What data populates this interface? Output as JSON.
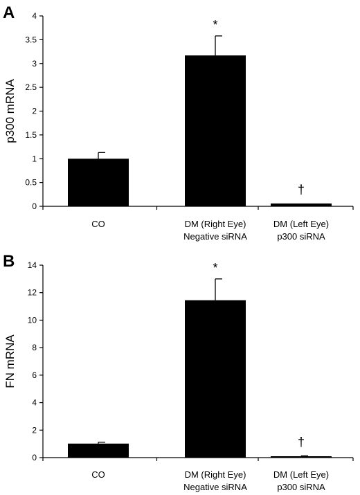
{
  "figure": {
    "background": "#ffffff",
    "bar_color": "#000000"
  },
  "chart_data": [
    {
      "type": "bar",
      "panel_label": "A",
      "title": "",
      "xlabel": "",
      "ylabel": "p300 mRNA",
      "ylim": [
        0,
        4
      ],
      "yticks": [
        0,
        0.5,
        1,
        1.5,
        2,
        2.5,
        3,
        3.5,
        4
      ],
      "ytick_labels": [
        "0",
        "0.5",
        "1",
        "1.5",
        "2",
        "2.5",
        "3",
        "3.5",
        "4"
      ],
      "grid": false,
      "categories": [
        [
          "CO"
        ],
        [
          "DM (Right Eye)",
          "Negative siRNA"
        ],
        [
          "DM (Left Eye)",
          "p300 siRNA"
        ]
      ],
      "values": [
        1.0,
        3.17,
        0.06
      ],
      "errors": [
        0.13,
        0.41,
        0.0
      ],
      "annotations": [
        "",
        "*",
        "†"
      ]
    },
    {
      "type": "bar",
      "panel_label": "B",
      "title": "",
      "xlabel": "",
      "ylabel": "FN mRNA",
      "ylim": [
        0,
        14
      ],
      "yticks": [
        0,
        2,
        4,
        6,
        8,
        10,
        12,
        14
      ],
      "ytick_labels": [
        "0",
        "2",
        "4",
        "6",
        "8",
        "10",
        "12",
        "14"
      ],
      "grid": false,
      "categories": [
        [
          "CO"
        ],
        [
          "DM (Right Eye)",
          "Negative siRNA"
        ],
        [
          "DM (Left Eye)",
          "p300 siRNA"
        ]
      ],
      "values": [
        1.02,
        11.45,
        0.1
      ],
      "errors": [
        0.1,
        1.55,
        0.03
      ],
      "annotations": [
        "",
        "*",
        "†"
      ]
    }
  ]
}
